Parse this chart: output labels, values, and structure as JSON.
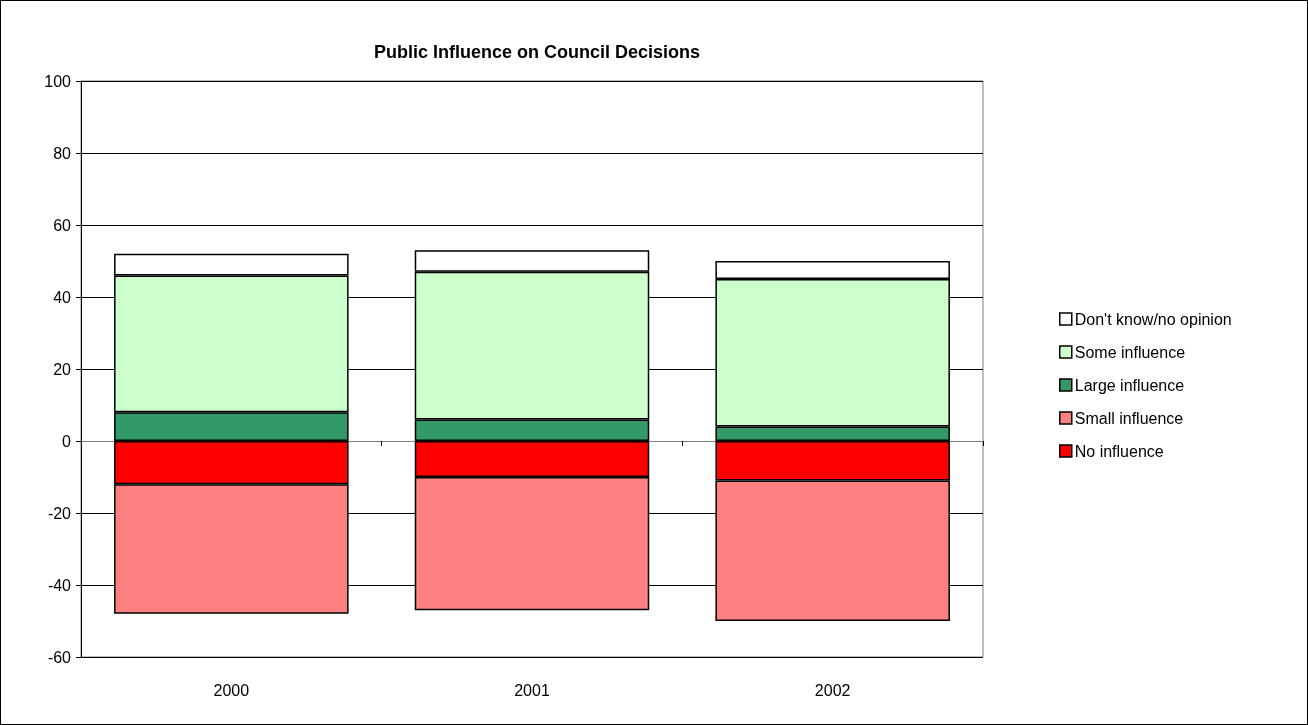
{
  "chart_data": {
    "type": "bar",
    "title": "Public Influence on Council Decisions",
    "categories": [
      "2000",
      "2001",
      "2002"
    ],
    "series": [
      {
        "name": "No influence",
        "color": "#ff0000",
        "values": [
          -12,
          -10,
          -11
        ]
      },
      {
        "name": "Small influence",
        "color": "#ff8080",
        "values": [
          -36,
          -37,
          -39
        ]
      },
      {
        "name": "Large influence",
        "color": "#339966",
        "values": [
          8,
          6,
          4
        ]
      },
      {
        "name": "Some influence",
        "color": "#ccffcc",
        "values": [
          38,
          41,
          41
        ]
      },
      {
        "name": "Don't know/no opinion",
        "color": "#ffffff",
        "values": [
          6,
          6,
          5
        ]
      }
    ],
    "stacked": true,
    "ylim": [
      -60,
      100
    ],
    "yticks": [
      -60,
      -40,
      -20,
      0,
      20,
      40,
      60,
      80,
      100
    ],
    "grid": "y",
    "legend": "right"
  }
}
